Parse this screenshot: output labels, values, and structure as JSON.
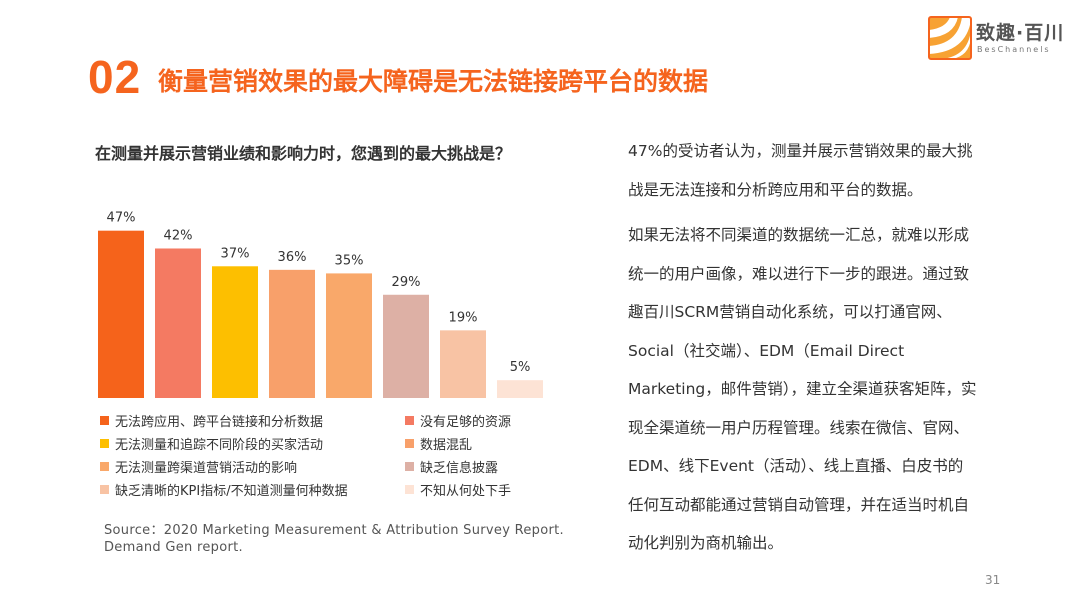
{
  "header": {
    "number": "02",
    "title": "衡量营销效果的最大障碍是无法链接跨平台的数据"
  },
  "logo": {
    "cn": "致趣·百川",
    "en": "BesChannels",
    "colors": [
      "#F7A233",
      "#F5641E",
      "#E8452C"
    ]
  },
  "chart_question": "在测量并展示营销业绩和影响力时，您遇到的最大挑战是？",
  "chart_data": {
    "type": "bar",
    "categories": [
      "无法跨应用、跨平台链接和分析数据",
      "没有足够的资源",
      "无法测量和追踪不同阶段的买家活动",
      "数据混乱",
      "无法测量跨渠道营销活动的影响",
      "缺乏信息披露",
      "缺乏清晰的KPI指标/不知道测量何种数据",
      "不知从何处下手"
    ],
    "values": [
      47,
      42,
      37,
      36,
      35,
      29,
      19,
      5
    ],
    "value_labels": [
      "47%",
      "42%",
      "37%",
      "36%",
      "35%",
      "29%",
      "19%",
      "5%"
    ],
    "colors": [
      "#F5631B",
      "#F47A62",
      "#FDBF00",
      "#F8A06A",
      "#F9A86A",
      "#DDB0A5",
      "#F8C3A4",
      "#FDE3D5"
    ],
    "ylim": [
      0,
      50
    ],
    "grid": false,
    "legend_placement": "bottom"
  },
  "source": "Source：2020 Marketing Measurement & Attribution Survey Report. Demand Gen report.",
  "right_text": {
    "p1": "47%的受访者认为，测量并展示营销效果的最大挑战是无法连接和分析跨应用和平台的数据。",
    "p2": "如果无法将不同渠道的数据统一汇总，就难以形成统一的用户画像，难以进行下一步的跟进。通过致趣百川SCRM营销自动化系统，可以打通官网、Social（社交端）、EDM（Email Direct Marketing，邮件营销），建立全渠道获客矩阵，实现全渠道统一用户历程管理。线索在微信、官网、EDM、线下Event（活动）、线上直播、白皮书的任何互动都能通过营销自动管理，并在适当时机自动化判别为商机输出。"
  },
  "page_number": "31"
}
